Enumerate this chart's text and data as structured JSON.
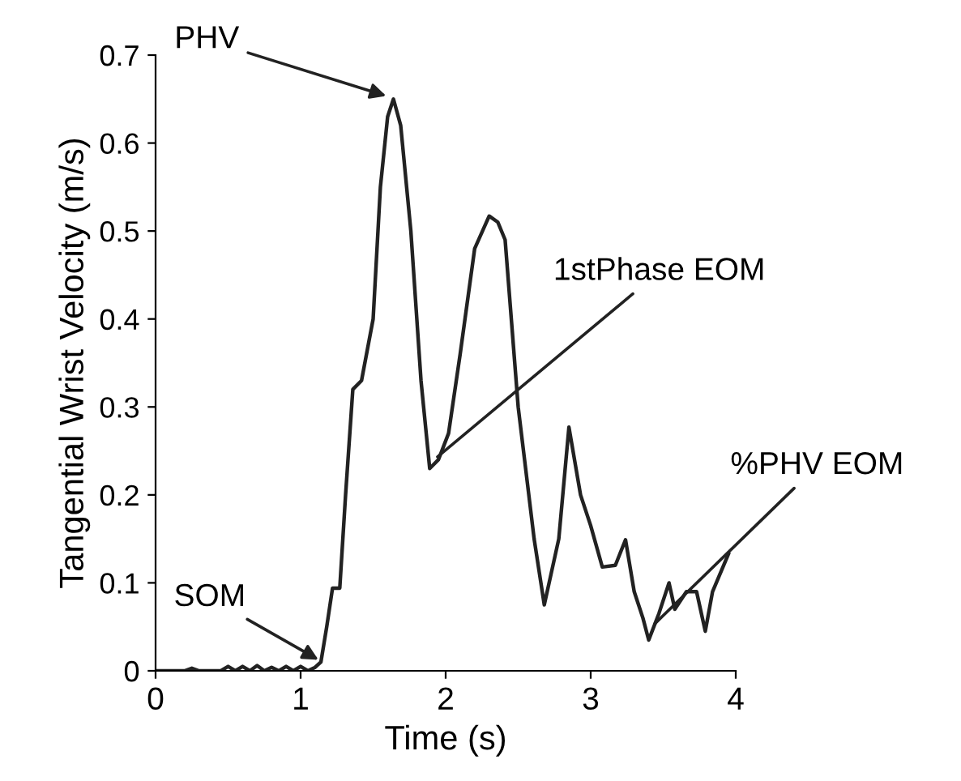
{
  "chart_data": {
    "type": "line",
    "xlabel": "Time (s)",
    "ylabel": "Tangential Wrist Velocity (m/s)",
    "xlim": [
      0,
      4
    ],
    "ylim": [
      0,
      0.7
    ],
    "xticks": [
      0,
      1,
      2,
      3,
      4
    ],
    "yticks": [
      0,
      0.1,
      0.2,
      0.3,
      0.4,
      0.5,
      0.6,
      0.7
    ],
    "grid": false,
    "marker": "none",
    "line_style": "solid",
    "series": [
      {
        "color": "#222222",
        "x": [
          0,
          0.2,
          0.25,
          0.3,
          0.45,
          0.5,
          0.55,
          0.6,
          0.65,
          0.7,
          0.75,
          0.8,
          0.85,
          0.9,
          0.95,
          1.0,
          1.05,
          1.1,
          1.14,
          1.18,
          1.22,
          1.27,
          1.31,
          1.36,
          1.42,
          1.5,
          1.55,
          1.6,
          1.64,
          1.69,
          1.76,
          1.83,
          1.89,
          1.95,
          2.02,
          2.1,
          2.2,
          2.3,
          2.36,
          2.41,
          2.5,
          2.61,
          2.68,
          2.78,
          2.85,
          2.93,
          3.0,
          3.08,
          3.17,
          3.24,
          3.3,
          3.36,
          3.4,
          3.47,
          3.54,
          3.58,
          3.66,
          3.73,
          3.79,
          3.84,
          3.95
        ],
        "values": [
          0,
          0,
          0.003,
          0,
          0,
          0.005,
          0,
          0.005,
          0,
          0.006,
          0,
          0.004,
          0,
          0.005,
          0,
          0.005,
          0,
          0.004,
          0.01,
          0.05,
          0.094,
          0.094,
          0.2,
          0.32,
          0.33,
          0.4,
          0.55,
          0.63,
          0.65,
          0.62,
          0.5,
          0.33,
          0.23,
          0.24,
          0.27,
          0.36,
          0.48,
          0.517,
          0.51,
          0.49,
          0.3,
          0.15,
          0.075,
          0.15,
          0.277,
          0.2,
          0.165,
          0.118,
          0.12,
          0.149,
          0.09,
          0.06,
          0.035,
          0.065,
          0.1,
          0.07,
          0.09,
          0.09,
          0.045,
          0.09,
          0.133
        ]
      }
    ],
    "annotations": [
      {
        "text": "PHV",
        "x": 1.62,
        "y": 0.652
      },
      {
        "text": "SOM",
        "x": 1.15,
        "y": 0.01
      },
      {
        "text": "1stPhase EOM",
        "x": 1.92,
        "y": 0.24
      },
      {
        "text": "%PHV EOM",
        "x": 3.42,
        "y": 0.05
      }
    ]
  }
}
